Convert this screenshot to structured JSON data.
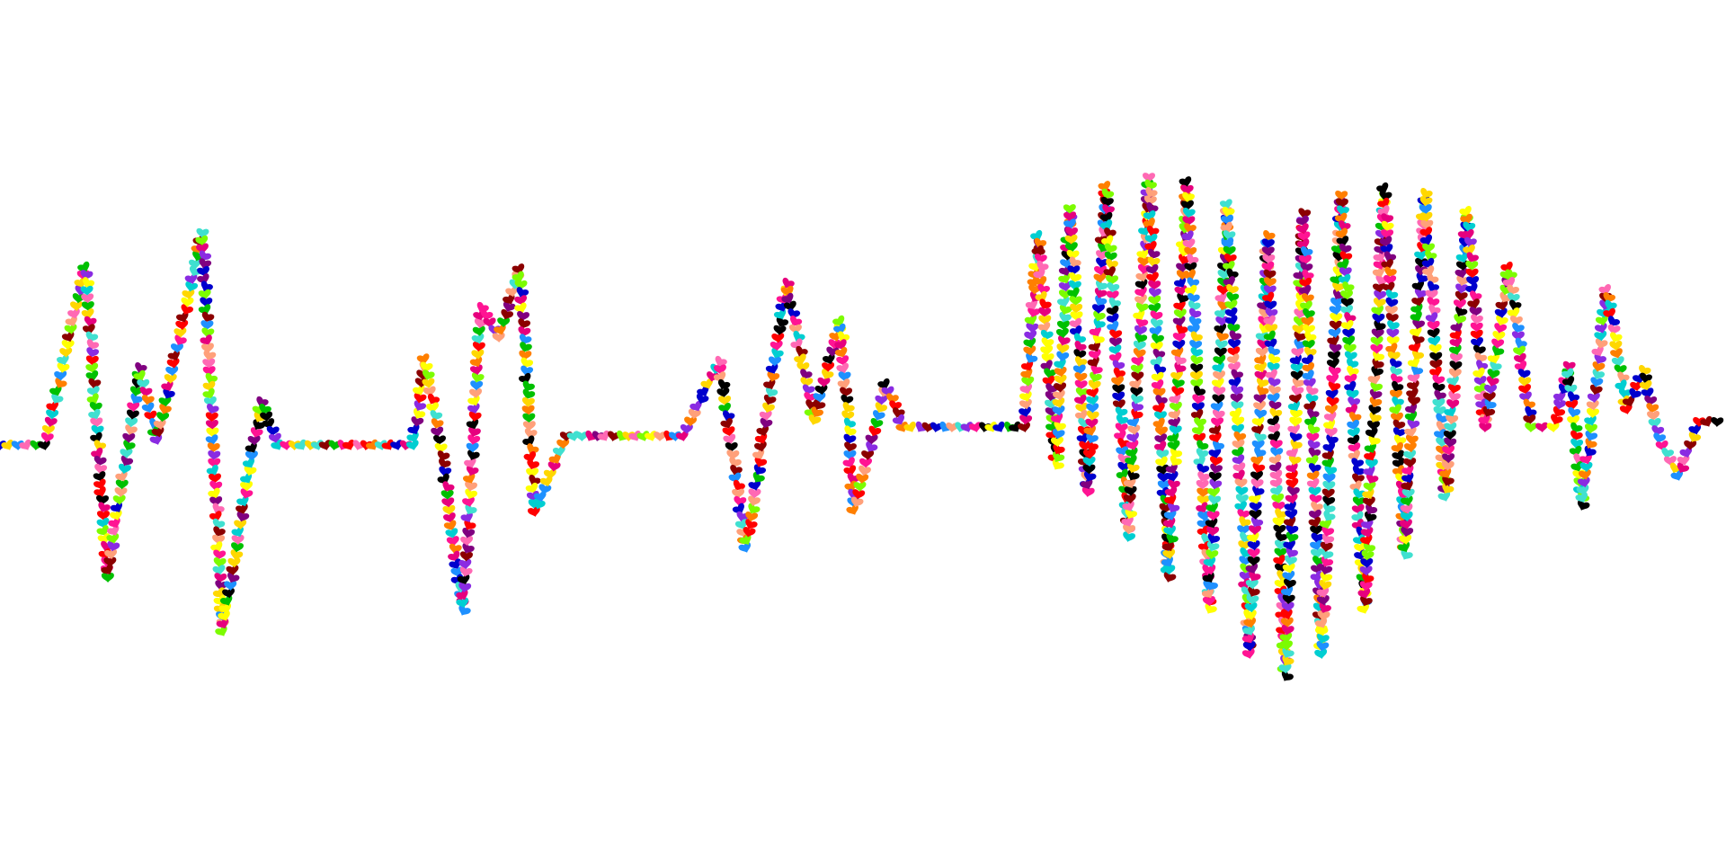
{
  "artwork": {
    "subject": "heartbeat-line-with-heart",
    "background_color": "#ffffff",
    "palette": [
      "#ff0000",
      "#ff1493",
      "#e6007e",
      "#ff7f00",
      "#ffd700",
      "#ffff00",
      "#7cfc00",
      "#00c000",
      "#00ced1",
      "#1e90ff",
      "#0000cd",
      "#8a2be2",
      "#800080",
      "#8b0000",
      "#000000",
      "#ff69b4",
      "#ffa07a",
      "#40e0d0"
    ]
  }
}
